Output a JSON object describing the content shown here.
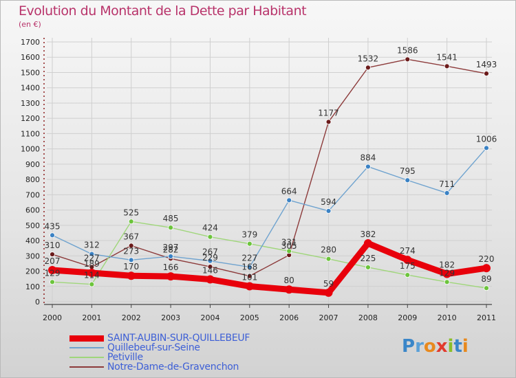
{
  "title": "Evolution du Montant de la Dette par Habitant",
  "subtitle": "(en €)",
  "brand": {
    "letters": [
      {
        "ch": "P",
        "color": "#3a86c8"
      },
      {
        "ch": "r",
        "color": "#5aa0d8"
      },
      {
        "ch": "o",
        "color": "#e8891e"
      },
      {
        "ch": "x",
        "color": "#e23b2e"
      },
      {
        "ch": "i",
        "color": "#8bbf2a"
      },
      {
        "ch": "t",
        "color": "#3a86c8"
      },
      {
        "ch": "i",
        "color": "#e8891e"
      }
    ]
  },
  "chart_data": {
    "type": "line",
    "title": "Evolution du Montant de la Dette par Habitant",
    "ylabel": "(en €)",
    "xlabel": "",
    "x": [
      "2000",
      "2001",
      "2002",
      "2003",
      "2004",
      "2005",
      "2006",
      "2007",
      "2008",
      "2009",
      "2010",
      "2011"
    ],
    "ylim": [
      0,
      1700
    ],
    "yticks": [
      0,
      100,
      200,
      300,
      400,
      500,
      600,
      700,
      800,
      900,
      1000,
      1100,
      1200,
      1300,
      1400,
      1500,
      1600,
      1700
    ],
    "grid": true,
    "legend_position": "bottom-left",
    "series": [
      {
        "name": "SAINT-AUBIN-SUR-QUILLEBEUF",
        "color": "#e8000b",
        "marker_color": "#e8000b",
        "values": [
          207,
          189,
          170,
          166,
          146,
          101,
          80,
          59,
          382,
          274,
          182,
          220
        ]
      },
      {
        "name": "Quillebeuf-sur-Seine",
        "color": "#6fa3cf",
        "marker_color": "#3b82c4",
        "values": [
          435,
          312,
          273,
          297,
          267,
          227,
          664,
          594,
          884,
          795,
          711,
          1006
        ]
      },
      {
        "name": "Petiville",
        "color": "#9fd67a",
        "marker_color": "#6cc43c",
        "values": [
          129,
          114,
          525,
          485,
          424,
          379,
          331,
          280,
          225,
          175,
          129,
          89
        ]
      },
      {
        "name": "Notre-Dame-de-Gravenchon",
        "color": "#8c3a3a",
        "marker_color": "#6b1b1b",
        "values": [
          310,
          227,
          367,
          282,
          229,
          168,
          305,
          1177,
          1532,
          1586,
          1541,
          1493
        ]
      }
    ]
  }
}
